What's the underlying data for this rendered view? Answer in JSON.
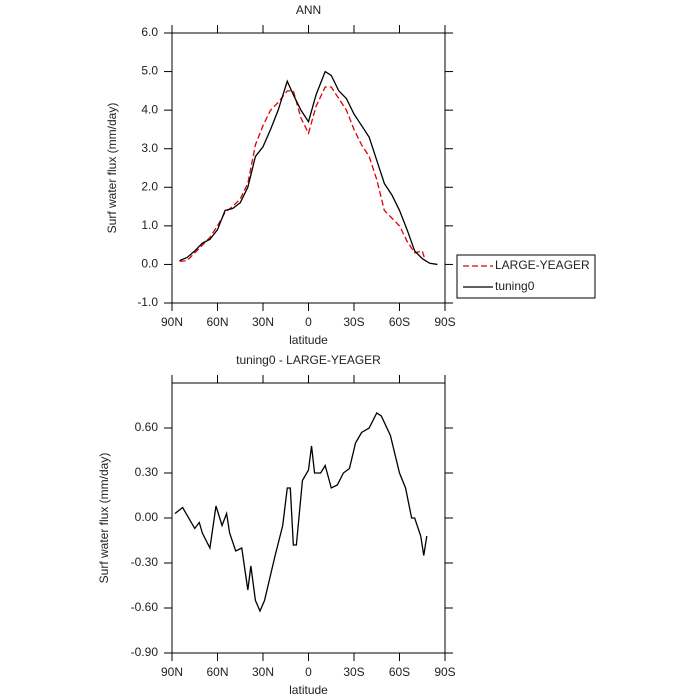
{
  "chart_data": [
    {
      "type": "line",
      "title": "ANN",
      "xlabel": "latitude",
      "ylabel": "Surf water flux (mm/day)",
      "x": [
        85,
        80,
        75,
        70,
        65,
        60,
        55,
        50,
        45,
        40,
        35,
        30,
        25,
        20,
        14,
        10,
        5,
        0,
        -5,
        -11,
        -15,
        -20,
        -25,
        -30,
        -35,
        -40,
        -45,
        -50,
        -55,
        -60,
        -65,
        -70,
        -75,
        -77,
        -80,
        -85
      ],
      "series": [
        {
          "name": "LARGE-YEAGER",
          "color": "#e00000",
          "dash": true,
          "values": [
            0.08,
            0.1,
            0.3,
            0.5,
            0.7,
            1.0,
            1.35,
            1.5,
            1.7,
            2.1,
            3.1,
            3.6,
            4.0,
            4.2,
            4.5,
            4.5,
            3.8,
            3.4,
            4.1,
            4.6,
            4.6,
            4.3,
            4.0,
            3.5,
            3.1,
            2.8,
            2.2,
            1.4,
            1.2,
            1.0,
            0.6,
            0.3,
            0.35,
            0.1,
            null,
            null
          ]
        },
        {
          "name": "tuning0",
          "color": "#000000",
          "dash": false,
          "values": [
            0.1,
            0.18,
            0.35,
            0.55,
            0.65,
            0.9,
            1.4,
            1.45,
            1.6,
            2.0,
            2.8,
            3.05,
            3.5,
            4.0,
            4.75,
            4.4,
            4.0,
            3.7,
            4.4,
            5.0,
            4.9,
            4.5,
            4.3,
            3.9,
            3.6,
            3.3,
            2.7,
            2.1,
            1.8,
            1.4,
            0.9,
            0.35,
            0.15,
            0.1,
            0.03,
            0.0
          ]
        }
      ],
      "xlim": [
        90,
        -90
      ],
      "xticks": [
        {
          "value": 90,
          "label": "90N"
        },
        {
          "value": 60,
          "label": "60N"
        },
        {
          "value": 30,
          "label": "30N"
        },
        0,
        {
          "value": -30,
          "label": "30S"
        },
        {
          "value": -60,
          "label": "60S"
        },
        {
          "value": -90,
          "label": "90S"
        }
      ],
      "ylim": [
        -1.0,
        6.0
      ],
      "yticks": [
        {
          "value": -1,
          "label": "-1.0"
        },
        {
          "value": 0,
          "label": "0.0"
        },
        {
          "value": 1,
          "label": "1.0"
        },
        {
          "value": 2,
          "label": "2.0"
        },
        {
          "value": 3,
          "label": "3.0"
        },
        {
          "value": 4,
          "label": "4.0"
        },
        {
          "value": 5,
          "label": "5.0"
        },
        {
          "value": 6,
          "label": "6.0"
        }
      ],
      "legend": "right"
    },
    {
      "type": "line",
      "title": "tuning0 - LARGE-YEAGER",
      "xlabel": "latitude",
      "ylabel": "Surf water flux (mm/day)",
      "x": [
        88,
        83,
        75,
        72,
        70,
        65,
        61,
        57,
        54,
        52,
        48,
        44,
        40,
        38,
        35,
        32,
        29,
        22,
        17,
        14,
        12,
        10,
        8,
        4,
        0,
        -2,
        -4,
        -8,
        -11,
        -15,
        -19,
        -23,
        -27,
        -31,
        -35,
        -40,
        -45,
        -48,
        -54,
        -60,
        -64,
        -68,
        -70,
        -74,
        -76,
        -78
      ],
      "series": [
        {
          "name": "tuning0 - LARGE-YEAGER",
          "color": "#000000",
          "dash": false,
          "values": [
            0.03,
            0.07,
            -0.07,
            -0.03,
            -0.1,
            -0.2,
            0.08,
            -0.05,
            0.03,
            -0.1,
            -0.22,
            -0.2,
            -0.48,
            -0.32,
            -0.55,
            -0.62,
            -0.55,
            -0.25,
            -0.05,
            0.2,
            0.2,
            -0.18,
            -0.18,
            0.25,
            0.32,
            0.48,
            0.3,
            0.3,
            0.35,
            0.2,
            0.22,
            0.3,
            0.33,
            0.5,
            0.57,
            0.6,
            0.7,
            0.68,
            0.55,
            0.3,
            0.2,
            0.0,
            0.0,
            -0.12,
            -0.25,
            -0.12
          ]
        }
      ],
      "xlim": [
        90,
        -90
      ],
      "xticks": [
        {
          "value": 90,
          "label": "90N"
        },
        {
          "value": 60,
          "label": "60N"
        },
        {
          "value": 30,
          "label": "30N"
        },
        0,
        {
          "value": -30,
          "label": "30S"
        },
        {
          "value": -60,
          "label": "60S"
        },
        {
          "value": -90,
          "label": "90S"
        }
      ],
      "ylim": [
        -0.9,
        0.9
      ],
      "yticks": [
        {
          "value": -0.9,
          "label": "-0.90"
        },
        {
          "value": -0.6,
          "label": "-0.60"
        },
        {
          "value": -0.3,
          "label": "-0.30"
        },
        {
          "value": 0,
          "label": "0.00"
        },
        {
          "value": 0.3,
          "label": "0.30"
        },
        {
          "value": 0.6,
          "label": "0.60"
        }
      ]
    }
  ]
}
